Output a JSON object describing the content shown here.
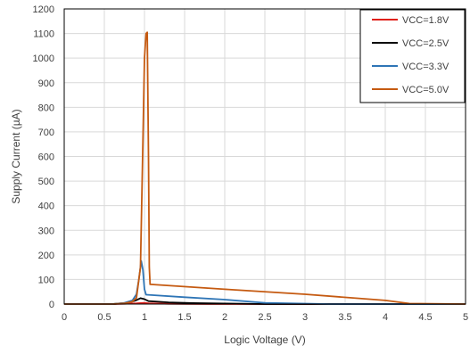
{
  "chart_data": {
    "type": "line",
    "title": "",
    "xlabel": "Logic Voltage (V)",
    "ylabel": "Supply Current (µA)",
    "xlim": [
      0,
      5
    ],
    "ylim": [
      0,
      1200
    ],
    "x_ticks": [
      "0",
      "0.5",
      "1",
      "1.5",
      "2",
      "2.5",
      "3",
      "3.5",
      "4",
      "4.5",
      "5"
    ],
    "y_ticks": [
      "0",
      "100",
      "200",
      "300",
      "400",
      "500",
      "600",
      "700",
      "800",
      "900",
      "1000",
      "1100",
      "1200"
    ],
    "grid": true,
    "legend_position": "top-right",
    "series": [
      {
        "name": "VCC=1.8V",
        "color": "#e0201b",
        "x": [
          0,
          0.6,
          0.75,
          0.85,
          0.9,
          0.95,
          1.0,
          1.05,
          1.15,
          1.3,
          1.5,
          1.8,
          5.0
        ],
        "y": [
          0,
          0,
          1,
          2,
          3,
          4,
          5,
          3,
          2,
          1,
          0.5,
          0,
          0
        ]
      },
      {
        "name": "VCC=2.5V",
        "color": "#000000",
        "x": [
          0,
          0.6,
          0.75,
          0.85,
          0.9,
          0.95,
          1.0,
          1.05,
          1.3,
          1.6,
          2.0,
          2.5,
          5.0
        ],
        "y": [
          0,
          0,
          4,
          10,
          16,
          24,
          20,
          12,
          7,
          4,
          2,
          0,
          0
        ]
      },
      {
        "name": "VCC=3.3V",
        "color": "#2e75b6",
        "x": [
          0,
          0.6,
          0.75,
          0.85,
          0.9,
          0.93,
          0.96,
          0.98,
          1.0,
          1.02,
          1.5,
          2.0,
          2.5,
          3.3,
          5.0
        ],
        "y": [
          0,
          0,
          5,
          15,
          40,
          100,
          175,
          140,
          60,
          38,
          28,
          18,
          5,
          0,
          0
        ]
      },
      {
        "name": "VCC=5.0V",
        "color": "#c55a11",
        "x": [
          0,
          0.6,
          0.75,
          0.85,
          0.9,
          0.95,
          0.98,
          1.0,
          1.02,
          1.035,
          1.05,
          1.06,
          1.07,
          2.0,
          3.0,
          4.0,
          4.3,
          5.0
        ],
        "y": [
          0,
          0,
          3,
          10,
          25,
          150,
          650,
          1000,
          1100,
          1105,
          600,
          150,
          80,
          60,
          40,
          15,
          2,
          0
        ]
      }
    ]
  }
}
